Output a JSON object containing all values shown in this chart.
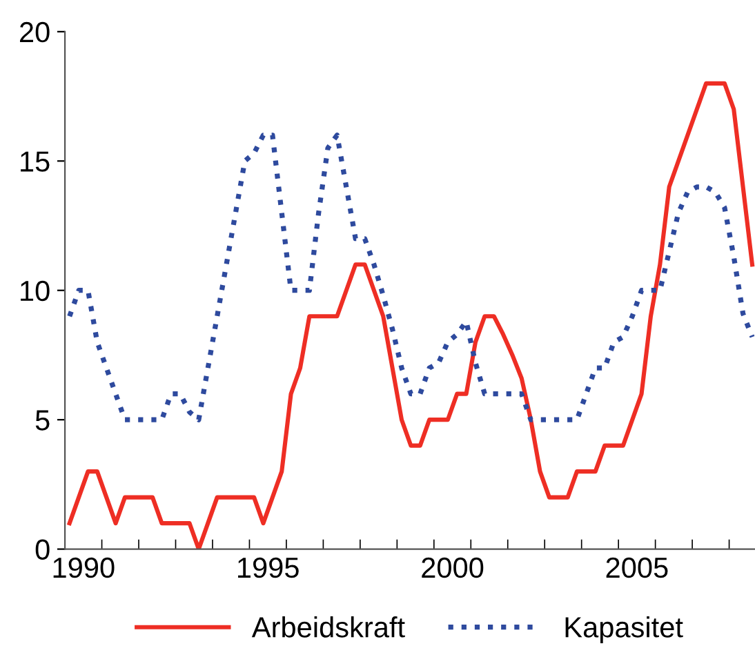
{
  "chart_data": {
    "type": "line",
    "xlim": [
      1990,
      2008.7
    ],
    "xticks": [
      {
        "value": 1990,
        "label": null
      },
      {
        "value": 1991,
        "label": null
      },
      {
        "value": 1992,
        "label": null
      },
      {
        "value": 1993,
        "label": null
      },
      {
        "value": 1994,
        "label": null
      },
      {
        "value": 1995,
        "label": null
      },
      {
        "value": 1996,
        "label": null
      },
      {
        "value": 1997,
        "label": null
      },
      {
        "value": 1998,
        "label": null
      },
      {
        "value": 1999,
        "label": null
      },
      {
        "value": 2000,
        "label": null
      },
      {
        "value": 2001,
        "label": null
      },
      {
        "value": 2002,
        "label": null
      },
      {
        "value": 2003,
        "label": null
      },
      {
        "value": 2004,
        "label": null
      },
      {
        "value": 2005,
        "label": null
      },
      {
        "value": 2006,
        "label": null
      },
      {
        "value": 2007,
        "label": null
      },
      {
        "value": 2008,
        "label": null
      },
      {
        "value": 1990.5,
        "label": "1990"
      },
      {
        "value": 1995.5,
        "label": "1995"
      },
      {
        "value": 2000.5,
        "label": "2000"
      },
      {
        "value": 2005.5,
        "label": "2005"
      }
    ],
    "ylim": [
      0,
      20
    ],
    "yticks": [
      0,
      5,
      10,
      15,
      20
    ],
    "grid": false,
    "legend": "bottom",
    "x": [
      1990.125,
      1990.375,
      1990.625,
      1990.875,
      1991.125,
      1991.375,
      1991.625,
      1991.875,
      1992.125,
      1992.375,
      1992.625,
      1992.875,
      1993.125,
      1993.375,
      1993.625,
      1993.875,
      1994.125,
      1994.375,
      1994.625,
      1994.875,
      1995.125,
      1995.375,
      1995.625,
      1995.875,
      1996.125,
      1996.375,
      1996.625,
      1996.875,
      1997.125,
      1997.375,
      1997.625,
      1997.875,
      1998.125,
      1998.375,
      1998.625,
      1998.875,
      1999.125,
      1999.375,
      1999.625,
      1999.875,
      2000.125,
      2000.375,
      2000.625,
      2000.875,
      2001.125,
      2001.375,
      2001.625,
      2001.875,
      2002.125,
      2002.375,
      2002.625,
      2002.875,
      2003.125,
      2003.375,
      2003.625,
      2003.875,
      2004.125,
      2004.375,
      2004.625,
      2004.875,
      2005.125,
      2005.375,
      2005.625,
      2005.875,
      2006.125,
      2006.375,
      2006.625,
      2006.875,
      2007.125,
      2007.375,
      2007.625,
      2007.875,
      2008.125,
      2008.375,
      2008.625
    ],
    "series": [
      {
        "name": "Arbeidskraft",
        "color": "#ee2e24",
        "line_style": "solid",
        "values": [
          1,
          2,
          3,
          3,
          2,
          1,
          2,
          2,
          2,
          2,
          1,
          1,
          1,
          1,
          0,
          1,
          2,
          2,
          2,
          2,
          2,
          1,
          2,
          3,
          6,
          7,
          9,
          9,
          9,
          9,
          10,
          11,
          11,
          10,
          9,
          7,
          5,
          4,
          4,
          5,
          5,
          5,
          6,
          6,
          8,
          9,
          9,
          8.3,
          7.5,
          6.6,
          5,
          3,
          2,
          2,
          2,
          3,
          3,
          3,
          4,
          4,
          4,
          5,
          6,
          9,
          11,
          14,
          15,
          16,
          17,
          18,
          18,
          18,
          17,
          14,
          11
        ]
      },
      {
        "name": "Kapasitet",
        "color": "#2e4a9e",
        "line_style": "dotted",
        "values": [
          9,
          10,
          10,
          8,
          7,
          6,
          5,
          5,
          5,
          5,
          5,
          6,
          6,
          5.3,
          5,
          7,
          9,
          11,
          13,
          15,
          15.3,
          16,
          16,
          13,
          10,
          10,
          10,
          13,
          15.5,
          16,
          14,
          12,
          12,
          11,
          9.8,
          8.5,
          7,
          6,
          6,
          7,
          7.2,
          8,
          8.3,
          8.8,
          7.2,
          6,
          6,
          6,
          6,
          6,
          5,
          5,
          5,
          5,
          5,
          5,
          6,
          7,
          7,
          8,
          8.2,
          9,
          10,
          10,
          10,
          11.5,
          13,
          13.8,
          14,
          14,
          13.8,
          13.2,
          11.3,
          9.1,
          8.2
        ]
      }
    ]
  }
}
